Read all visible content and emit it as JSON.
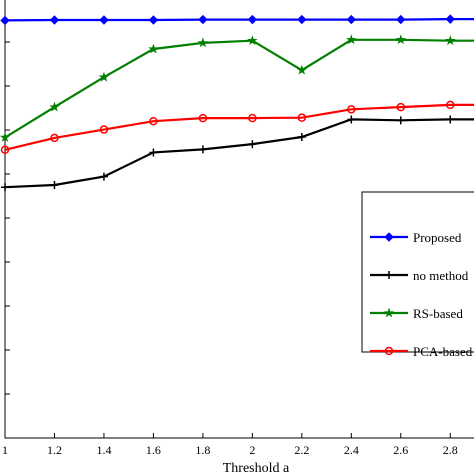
{
  "chart_data": {
    "type": "line",
    "xlabel": "Threshold a",
    "ylabel": "",
    "title": "",
    "x": [
      1.0,
      1.2,
      1.4,
      1.6,
      1.8,
      2.0,
      2.2,
      2.4,
      2.6,
      2.8,
      2.9
    ],
    "x_ticks": [
      "1",
      "1.2",
      "1.4",
      "1.6",
      "1.8",
      "2",
      "2.2",
      "2.4",
      "2.6",
      "2.8"
    ],
    "xlim": [
      1.0,
      2.9
    ],
    "ylim": [
      0,
      1
    ],
    "grid": false,
    "legend_position": "right",
    "series": [
      {
        "name": "Proposed",
        "color": "#0000ff",
        "marker": "diamond",
        "values": [
          0.949,
          0.95,
          0.95,
          0.95,
          0.951,
          0.951,
          0.951,
          0.951,
          0.951,
          0.952,
          0.952
        ]
      },
      {
        "name": "no method",
        "color": "#000000",
        "marker": "plus",
        "values": [
          0.57,
          0.575,
          0.594,
          0.649,
          0.656,
          0.668,
          0.684,
          0.724,
          0.722,
          0.724,
          0.724
        ]
      },
      {
        "name": "RS-based",
        "color": "#007f00",
        "marker": "star",
        "values": [
          0.683,
          0.752,
          0.82,
          0.884,
          0.898,
          0.903,
          0.836,
          0.905,
          0.905,
          0.903,
          0.903
        ]
      },
      {
        "name": "PCA-based",
        "color": "#ff0000",
        "marker": "circle",
        "values": [
          0.655,
          0.682,
          0.701,
          0.72,
          0.727,
          0.727,
          0.728,
          0.747,
          0.752,
          0.757,
          0.757
        ]
      }
    ]
  }
}
